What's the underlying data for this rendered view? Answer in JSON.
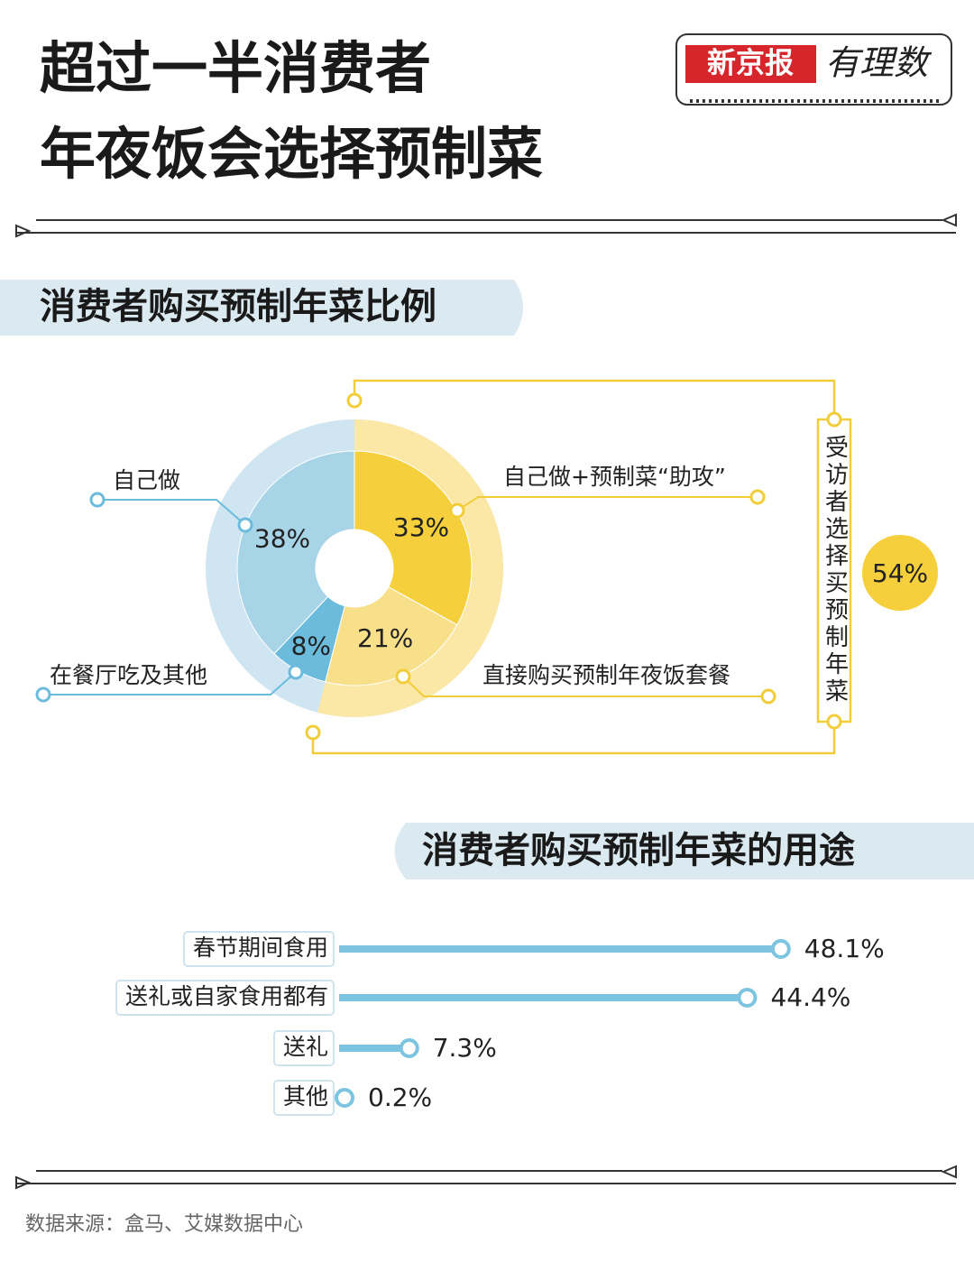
{
  "title_lines": [
    "超过一半消费者",
    "年夜饭会选择预制菜"
  ],
  "logo": {
    "brand": "新京报",
    "column": "有理数"
  },
  "source": "数据来源：盒马、艾媒数据中心",
  "chart_data": [
    {
      "type": "pie",
      "title": "消费者购买预制年菜比例",
      "categories": [
        "自己做+预制菜“助攻”",
        "直接购买预制年夜饭套餐",
        "在餐厅吃及其他",
        "自己做"
      ],
      "values": [
        33,
        21,
        8,
        38
      ],
      "value_labels": [
        "33%",
        "21%",
        "8%",
        "38%"
      ],
      "colors": [
        "#f5cf3c",
        "#f8e08a",
        "#6bbcdc",
        "#a8d4e8"
      ],
      "group": {
        "label": "受访者选择买预制年菜",
        "value": 54,
        "value_label": "54%",
        "color": "#fbe8a6"
      }
    },
    {
      "type": "bar",
      "title": "消费者购买预制年菜的用途",
      "categories": [
        "春节期间食用",
        "送礼或自家食用都有",
        "送礼",
        "其他"
      ],
      "values": [
        48.1,
        44.4,
        7.3,
        0.2
      ],
      "value_labels": [
        "48.1%",
        "44.4%",
        "7.3%",
        "0.2%"
      ],
      "color": "#7cc4e0"
    }
  ]
}
